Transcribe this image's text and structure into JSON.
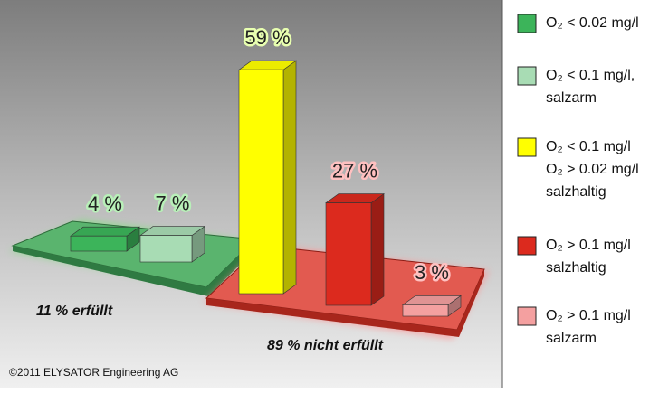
{
  "chart_data": {
    "type": "bar",
    "values": [
      4,
      7,
      59,
      27,
      3
    ],
    "value_labels": [
      "4 %",
      "7 %",
      "59 %",
      "27 %",
      "3 %"
    ],
    "colors": [
      "#3cb45a",
      "#a8dcb4",
      "#ffff00",
      "#dc2a1e",
      "#f4a0a0"
    ],
    "legend": [
      {
        "lines": [
          "O₂ < 0.02 mg/l"
        ]
      },
      {
        "lines": [
          "O₂ < 0.1 mg/l,",
          "salzarm"
        ]
      },
      {
        "lines": [
          "O₂ < 0.1 mg/l",
          "O₂ > 0.02 mg/l",
          "salzhaltig"
        ]
      },
      {
        "lines": [
          "O₂ > 0.1 mg/l",
          "salzhaltig"
        ]
      },
      {
        "lines": [
          "O₂ > 0.1 mg/l",
          "salzarm"
        ]
      }
    ],
    "annotations": [
      "11 % erfüllt",
      "89 % nicht erfüllt"
    ],
    "footer": "©2011 ELYSATOR Engineering AG"
  }
}
